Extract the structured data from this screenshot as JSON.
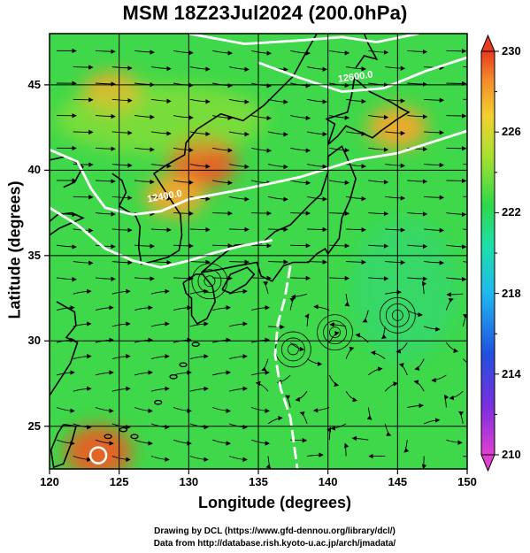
{
  "title": "MSM 18Z23Jul2024 (200.0hPa)",
  "xlabel": "Longitude (degrees)",
  "ylabel": "Latitude  (degrees)",
  "credits": [
    "Drawing by DCL (https://www.gfd-dennou.org/library/dcl/)",
    "Data from http://database.rish.kyoto-u.ac.jp/arch/jmadata/"
  ],
  "map": {
    "lon_range": [
      120,
      150
    ],
    "lat_range": [
      22.5,
      48
    ],
    "lon_ticks": [
      "120",
      "125",
      "130",
      "135",
      "140",
      "145",
      "150"
    ],
    "lat_ticks": [
      "25",
      "30",
      "35",
      "40",
      "45"
    ],
    "field": "temperature",
    "colorbar": {
      "min": 210,
      "max": 230,
      "labels": [
        "230",
        "226",
        "222",
        "218",
        "214",
        "210"
      ]
    },
    "contour_labels": [
      "12600.0",
      "12400.0"
    ],
    "warm_regions": [
      {
        "lon": 124.5,
        "lat": 44.5,
        "value": 226
      },
      {
        "lon": 131,
        "lat": 40.5,
        "value": 228
      },
      {
        "lon": 129,
        "lat": 38.5,
        "value": 227
      },
      {
        "lon": 145,
        "lat": 42.5,
        "value": 226
      },
      {
        "lon": 123.5,
        "lat": 23.5,
        "value": 228
      }
    ]
  },
  "colors": {
    "base": "#3fd84a",
    "warm": "#f8a62b",
    "hot": "#f05a22",
    "cool": "#2fd8a0"
  }
}
